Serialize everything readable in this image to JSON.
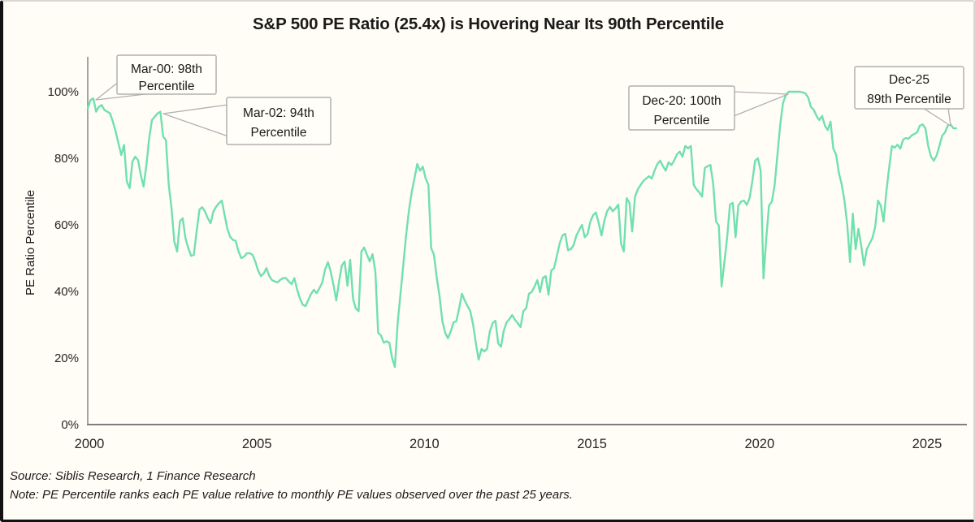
{
  "title": "S&P 500 PE Ratio (25.4x) is Hovering Near Its 90th Percentile",
  "footer": {
    "source": "Source: Siblis Research, 1 Finance Research",
    "note": "Note: PE Percentile ranks each PE value relative to monthly PE values observed over the past 25 years."
  },
  "colors": {
    "background": "#FFFDF5",
    "line": "#70E0AE",
    "axis": "#7F7F7F",
    "text": "#1A1A1A",
    "callout_fill": "#FFFEF8",
    "callout_border": "#B0B0B0"
  },
  "chart_data": {
    "type": "line",
    "title": "S&P 500 PE Ratio (25.4x) is Hovering Near Its 90th Percentile",
    "xlabel": "",
    "ylabel": "PE Ratio Percentile",
    "ylim": [
      0,
      100
    ],
    "grid": false,
    "legend_position": "none",
    "x_start_year": 2000,
    "points_per_year": 12,
    "x_ticks": [
      2000,
      2005,
      2010,
      2015,
      2020,
      2025
    ],
    "y_ticks": [
      {
        "label": "0%",
        "value": 0
      },
      {
        "label": "20%",
        "value": 20
      },
      {
        "label": "40%",
        "value": 40
      },
      {
        "label": "60%",
        "value": 60
      },
      {
        "label": "80%",
        "value": 80
      },
      {
        "label": "100%",
        "value": 100
      }
    ],
    "series": [
      {
        "name": "PE Ratio Percentile",
        "values": [
          95,
          97.5,
          98,
          94,
          95.5,
          96,
          94.5,
          94,
          93.5,
          91,
          88,
          84.5,
          81,
          84,
          73,
          71,
          79,
          80.5,
          79.5,
          75,
          71.5,
          78,
          86,
          91.5,
          92.5,
          93.5,
          94,
          86.5,
          85.5,
          72,
          65,
          55,
          52,
          61,
          62,
          56,
          53,
          50.7,
          51,
          58,
          64.6,
          65.3,
          64,
          62,
          60.5,
          64,
          65.5,
          66.5,
          67.3,
          63,
          58.8,
          56.4,
          55.5,
          55.2,
          52,
          50,
          50.5,
          51.5,
          51.5,
          51,
          49,
          46.3,
          44.6,
          45.4,
          47,
          44.6,
          43.4,
          43,
          42.7,
          43.5,
          44,
          44,
          43,
          42.2,
          44,
          40.5,
          37.8,
          36,
          35.6,
          37.5,
          39.3,
          40.5,
          39.5,
          41,
          42.7,
          46.6,
          48.8,
          46,
          42,
          37.3,
          43,
          47.8,
          49,
          41.7,
          49.5,
          37.8,
          34.9,
          34.1,
          52,
          53.2,
          51,
          49,
          51.2,
          45.9,
          27.6,
          26.8,
          24.6,
          25,
          24.6,
          20,
          17.3,
          30.7,
          39.3,
          47.8,
          56.8,
          64.1,
          69.8,
          73.9,
          78.3,
          76.3,
          77.5,
          74,
          72,
          53,
          51,
          44,
          38.5,
          31,
          27.6,
          25.9,
          28,
          30.7,
          31,
          34.9,
          39.3,
          37.3,
          35.6,
          34.1,
          30,
          24.4,
          19.5,
          22.7,
          22,
          22.7,
          28,
          30.5,
          31.2,
          24.4,
          23.4,
          28.3,
          30.7,
          31.7,
          32.9,
          31.5,
          30.5,
          29.3,
          34.1,
          34.9,
          39.3,
          39.8,
          41.5,
          43.4,
          39.8,
          44.1,
          44.6,
          39,
          46.3,
          47,
          50.7,
          54.4,
          56.8,
          57.3,
          52.4,
          52.7,
          53.9,
          56.8,
          58.5,
          60,
          56.3,
          57.3,
          61,
          62.9,
          63.7,
          60.5,
          56.8,
          61.2,
          64.1,
          65.4,
          64.1,
          64.9,
          66.1,
          54.4,
          52,
          68,
          66.6,
          58,
          68.5,
          70.7,
          72,
          73.2,
          73.9,
          74.6,
          73.9,
          76.3,
          78.3,
          79.3,
          77.6,
          76.3,
          78.8,
          78,
          79.3,
          81.2,
          82,
          80.5,
          83.7,
          83,
          83.7,
          72,
          70.7,
          69.8,
          68.5,
          77.1,
          77.6,
          78,
          72.2,
          61,
          59.8,
          41.5,
          48.8,
          56.3,
          66.1,
          66.6,
          56.3,
          65.8,
          67,
          67.3,
          66,
          68,
          73,
          79.3,
          80,
          76.3,
          43.9,
          56,
          65.8,
          67,
          72,
          81.2,
          90.2,
          96.6,
          99,
          100,
          100,
          100,
          100,
          100,
          99.8,
          99.5,
          98.3,
          95.4,
          94.6,
          92.7,
          91.5,
          92.7,
          89.8,
          88.5,
          91,
          82.9,
          81.2,
          75.6,
          72.2,
          67.3,
          60,
          48.8,
          63.4,
          52.7,
          58.8,
          53.7,
          47.8,
          52.7,
          54.4,
          56,
          59.3,
          67.3,
          65.8,
          61,
          70,
          77.1,
          83.7,
          83.2,
          84.1,
          82.9,
          85.6,
          86.1,
          85.9,
          86.8,
          87.3,
          87.8,
          89.8,
          90.2,
          89,
          83.7,
          80.5,
          79.3,
          80.8,
          83.7,
          86.8,
          87.8,
          89.8,
          90.2,
          89,
          89
        ]
      }
    ],
    "annotations": [
      {
        "label": "Mar-00: 98th Percentile",
        "lines": [
          "Mar-00: 98th",
          "Percentile"
        ],
        "point": "2000-03",
        "percentile": 98
      },
      {
        "label": "Mar-02: 94th Percentile",
        "lines": [
          "Mar-02: 94th",
          "Percentile"
        ],
        "point": "2002-03",
        "percentile": 94
      },
      {
        "label": "Dec-20: 100th Percentile",
        "lines": [
          "Dec-20: 100th",
          "Percentile"
        ],
        "point": "2020-12",
        "percentile": 100
      },
      {
        "label": "Dec-25 89th Percentile",
        "lines": [
          "Dec-25",
          "89th Percentile"
        ],
        "point": "2025-12",
        "percentile": 89
      }
    ]
  }
}
